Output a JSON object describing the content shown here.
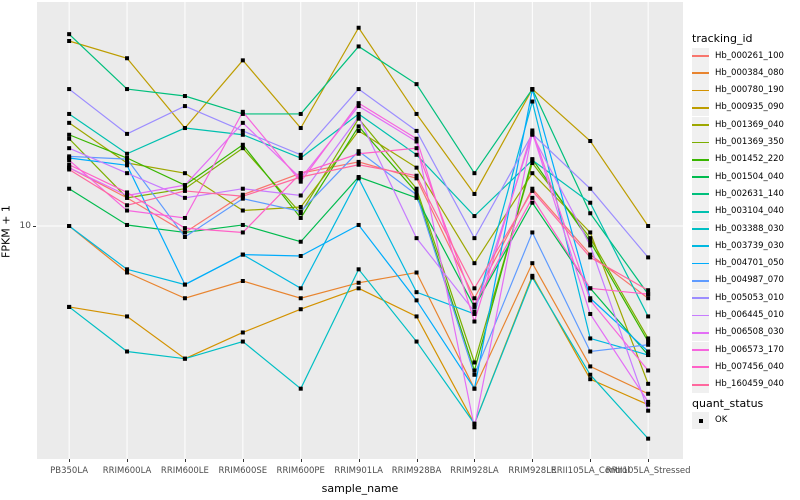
{
  "axes": {
    "x_title": "sample_name",
    "y_title": "FPKM + 1",
    "y_tick_label": "10"
  },
  "legend": {
    "tracking_title": "tracking_id",
    "quant_title": "quant_status",
    "quant_items": [
      {
        "label": "OK",
        "marker": "black-square"
      }
    ]
  },
  "chart_data": {
    "type": "line",
    "xlabel": "sample_name",
    "ylabel": "FPKM + 1",
    "y_scale": "log10",
    "y_ticks": [
      10
    ],
    "ylim": [
      0.93,
      86
    ],
    "grid": "major-white-on-gray",
    "panel_bg": "#EBEBEB",
    "grid_color": "#FFFFFF",
    "marker": "black-square",
    "legend_position": "right",
    "categories": [
      "PB350LA",
      "RRIM600LA",
      "RRIM600LE",
      "RRIM600SE",
      "RRIM600PE",
      "RRIM901LA",
      "RRIM928BA",
      "RRIM928LA",
      "RRIM928LE",
      "RRII105LA_Control",
      "RRII105LA_Stressed"
    ],
    "series": [
      {
        "name": "Hb_000261_100",
        "color": "#F8766D",
        "values": [
          17.5,
          13.1,
          9.4,
          13.5,
          16.6,
          18.5,
          15.8,
          5.0,
          14.3,
          7.6,
          5.0
        ]
      },
      {
        "name": "Hb_000384_080",
        "color": "#E8842F",
        "values": [
          10,
          6.4,
          5.0,
          5.9,
          5.0,
          5.8,
          6.4,
          2.1,
          7.0,
          2.6,
          2.0
        ]
      },
      {
        "name": "Hb_000780_190",
        "color": "#D39200",
        "values": [
          4.6,
          4.2,
          2.8,
          3.6,
          4.5,
          5.5,
          4.2,
          1.5,
          6.2,
          2.3,
          1.8
        ]
      },
      {
        "name": "Hb_000935_090",
        "color": "#BD9D00",
        "values": [
          59,
          50,
          25.6,
          49,
          25.6,
          67,
          29.3,
          13.6,
          37.2,
          22.6,
          10
        ]
      },
      {
        "name": "Hb_001369_040",
        "color": "#9DA700",
        "values": [
          26.9,
          18.3,
          16.6,
          11.6,
          12,
          24.9,
          17.5,
          7,
          16.6,
          9.4,
          2.2
        ]
      },
      {
        "name": "Hb_001369_350",
        "color": "#7CAE00",
        "values": [
          23.1,
          13.1,
          14.3,
          21.1,
          11.3,
          28,
          14.3,
          2.7,
          18.3,
          8.9,
          3.4
        ]
      },
      {
        "name": "Hb_001452_220",
        "color": "#39B600",
        "values": [
          24,
          19.2,
          14.8,
          21.8,
          10.8,
          26,
          13.8,
          2.5,
          19,
          8.6,
          3.3
        ]
      },
      {
        "name": "Hb_001504_040",
        "color": "#00BB4E",
        "values": [
          14.3,
          10.1,
          9.4,
          10.1,
          8.6,
          16,
          13.1,
          4.6,
          12.5,
          5.5,
          2.9
        ]
      },
      {
        "name": "Hb_002631_140",
        "color": "#00BF7C",
        "values": [
          63,
          37.2,
          34.8,
          29.3,
          29.3,
          56,
          39,
          16.6,
          37.2,
          11.3,
          5.2
        ]
      },
      {
        "name": "Hb_003104_040",
        "color": "#00C0AF",
        "values": [
          29.3,
          20,
          25.6,
          24,
          19.2,
          29.3,
          19.8,
          11,
          18.8,
          12.5,
          4.2
        ]
      },
      {
        "name": "Hb_003388_030",
        "color": "#00BFC4",
        "values": [
          4.6,
          3.0,
          2.8,
          3.3,
          2.1,
          6.6,
          3.3,
          1.5,
          6.1,
          2.4,
          1.3
        ]
      },
      {
        "name": "Hb_003739_030",
        "color": "#00B8E0",
        "values": [
          10,
          6.6,
          5.7,
          7.6,
          5.5,
          15.8,
          5.3,
          4.3,
          33,
          3.4,
          2.9
        ]
      },
      {
        "name": "Hb_004701_050",
        "color": "#00ACFC",
        "values": [
          19.2,
          17.9,
          5.7,
          7.6,
          7.5,
          10.1,
          4.9,
          2.1,
          37,
          5.0,
          3.0
        ]
      },
      {
        "name": "Hb_004987_070",
        "color": "#5F9BFF",
        "values": [
          19.5,
          19,
          9,
          13,
          11.5,
          20.5,
          13.5,
          2.4,
          9.4,
          3.0,
          3.2
        ]
      },
      {
        "name": "Hb_005053_010",
        "color": "#9C8DFF",
        "values": [
          37.2,
          24.2,
          31.6,
          24.9,
          19.8,
          37.2,
          24.9,
          8.9,
          24.2,
          14.3,
          7.4
        ]
      },
      {
        "name": "Hb_006445_010",
        "color": "#C77CFF",
        "values": [
          21.1,
          16.6,
          13.1,
          14.3,
          13.4,
          28.5,
          8.9,
          4.4,
          24,
          8.3,
          1.7
        ]
      },
      {
        "name": "Hb_006508_030",
        "color": "#E36EF6",
        "values": [
          17.5,
          13.4,
          14.8,
          26.9,
          15.8,
          31.6,
          22.5,
          1.45,
          24.5,
          4.3,
          1.85
        ]
      },
      {
        "name": "Hb_006573_170",
        "color": "#F666DE",
        "values": [
          18.8,
          11.6,
          10.8,
          29.9,
          15.3,
          32.5,
          23.1,
          4.0,
          25,
          4.9,
          2.5
        ]
      },
      {
        "name": "Hb_007456_040",
        "color": "#FF61C7",
        "values": [
          18,
          13.8,
          9.8,
          9.4,
          16.6,
          20,
          21.1,
          4.7,
          13.1,
          5.5,
          5.2
        ]
      },
      {
        "name": "Hb_160459_040",
        "color": "#FF689E",
        "values": [
          17.2,
          12.2,
          14,
          13.3,
          16,
          18,
          16.2,
          5.5,
          14,
          7.4,
          5.4
        ]
      }
    ]
  }
}
